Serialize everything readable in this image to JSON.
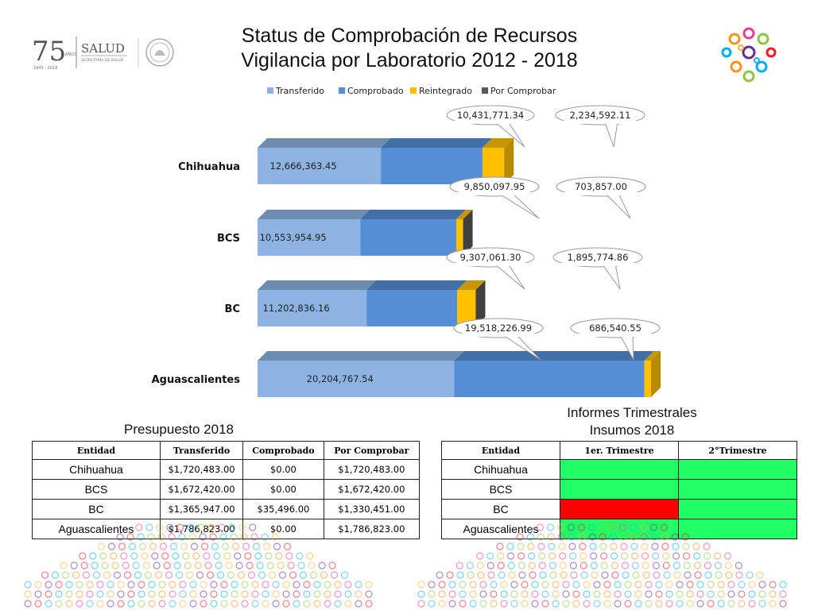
{
  "header": {
    "title_line1": "Status de Comprobación de Recursos",
    "title_line2": "Vigilancia por Laboratorio 2012 - 2018"
  },
  "logos": {
    "anniversary_number": "75",
    "anniversary_word": "AÑOS",
    "anniversary_years": "1943 - 2018",
    "salud": "SALUD",
    "secretaria": "SECRETARÍA DE SALUD"
  },
  "chart_data": {
    "type": "bar",
    "orientation": "horizontal",
    "stacked": true,
    "legend_position": "top",
    "categories": [
      "Chihuahua",
      "BCS",
      "BC",
      "Aguascalientes"
    ],
    "series": [
      {
        "name": "Transferido",
        "color": "#8DB3E2",
        "values": [
          12666363.45,
          10553954.95,
          11202836.16,
          20204767.54
        ],
        "labels": [
          "12,666,363.45",
          "10,553,954.95",
          "11,202,836.16",
          "20,204,767.54"
        ]
      },
      {
        "name": "Comprobado",
        "color": "#558ED5",
        "values": [
          10431771.34,
          9850097.95,
          9307061.3,
          19518226.99
        ],
        "labels": [
          "10,431,771.34",
          "9,850,097.95",
          "9,307,061.30",
          "19,518,226.99"
        ]
      },
      {
        "name": "Reintegrado",
        "color": "#FFC000",
        "values": [
          2234592.11,
          703857.0,
          1895774.86,
          686540.55
        ],
        "labels": [
          "2,234,592.11",
          "703,857.00",
          "1,895,774.86",
          "686,540.55"
        ]
      },
      {
        "name": "Por Comprobar",
        "color": "#595959",
        "values": [
          0,
          0,
          0,
          0
        ]
      }
    ]
  },
  "budget": {
    "caption": "Presupuesto 2018",
    "headers": [
      "Entidad",
      "Transferido",
      "Comprobado",
      "Por Comprobar"
    ],
    "rows": [
      [
        "Chihuahua",
        "$1,720,483.00",
        "$0.00",
        "$1,720,483.00"
      ],
      [
        "BCS",
        "$1,672,420.00",
        "$0.00",
        "$1,672,420.00"
      ],
      [
        "BC",
        "$1,365,947.00",
        "$35,496.00",
        "$1,330,451.00"
      ],
      [
        "Aguascalientes",
        "$1,786,823.00",
        "$0.00",
        "$1,786,823.00"
      ]
    ]
  },
  "reports": {
    "caption_line1": "Informes Trimestrales",
    "caption_line2": "Insumos 2018",
    "headers": [
      "Entidad",
      "1er. Trimestre",
      "2°Trimestre"
    ],
    "rows": [
      {
        "entity": "Chihuahua",
        "q1": "#21FF66",
        "q2": "#21FF66"
      },
      {
        "entity": "BCS",
        "q1": "#21FF66",
        "q2": "#21FF66"
      },
      {
        "entity": "BC",
        "q1": "#FF0000",
        "q2": "#21FF66"
      },
      {
        "entity": "Aguascalientes",
        "q1": "#21FF66",
        "q2": "#21FF66"
      }
    ]
  }
}
